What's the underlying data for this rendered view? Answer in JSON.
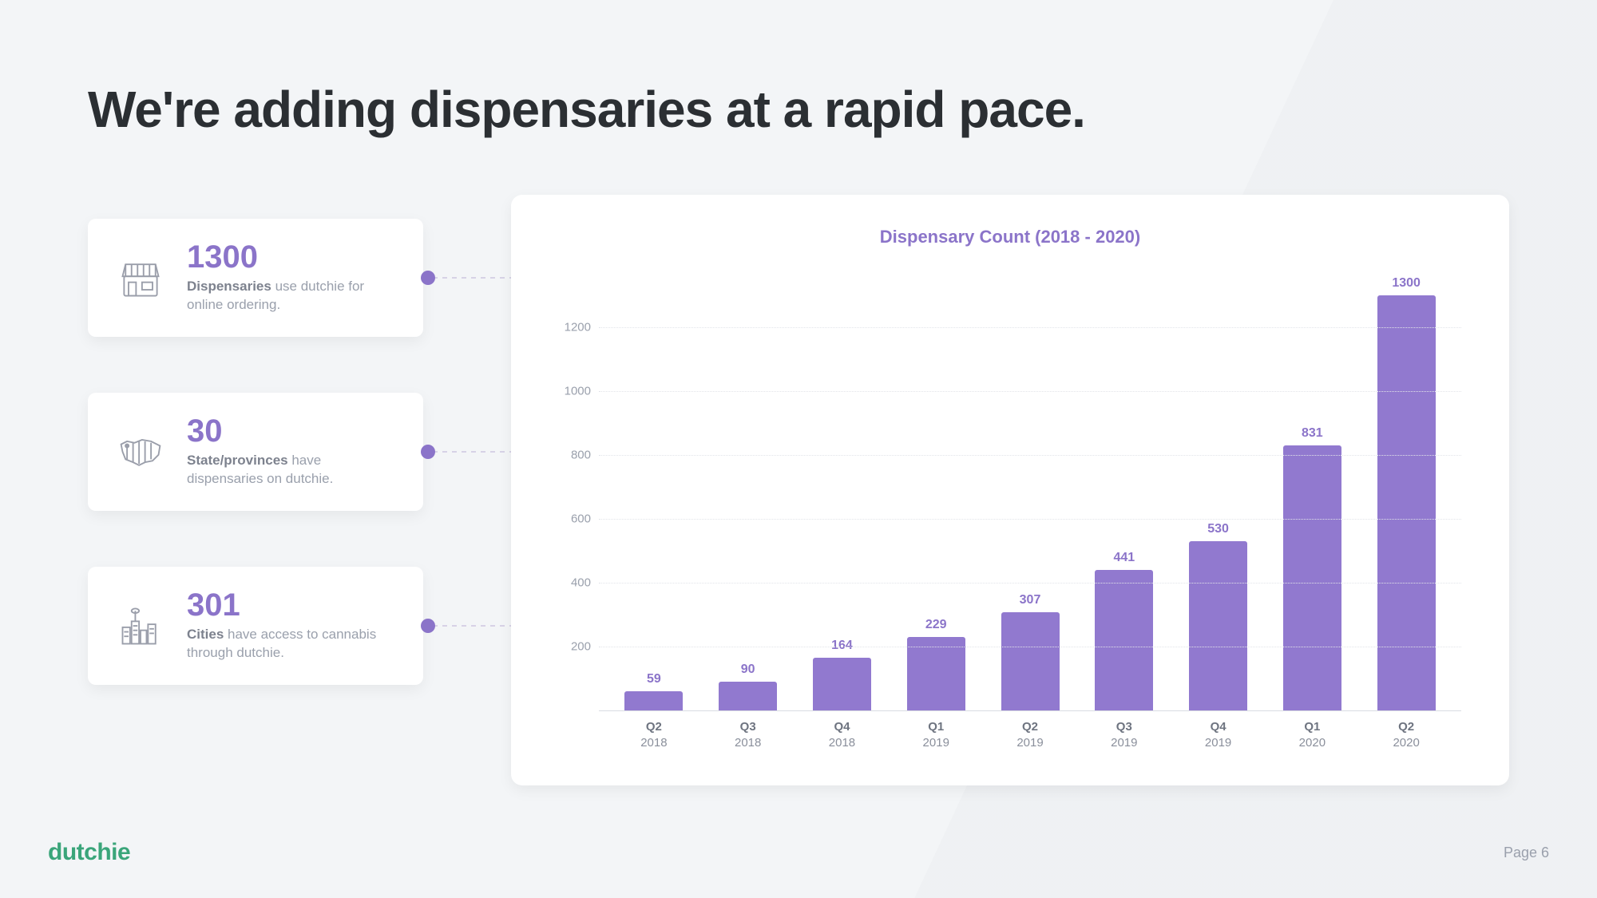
{
  "title": "We're adding dispensaries at a rapid pace.",
  "cards": [
    {
      "value": "1300",
      "label_bold": "Dispensaries",
      "label_rest": " use dutchie for online ordering."
    },
    {
      "value": "30",
      "label_bold": "State/provinces",
      "label_rest": " have dispensaries on dutchie."
    },
    {
      "value": "301",
      "label_bold": "Cities",
      "label_rest": " have access to cannabis through dutchie."
    }
  ],
  "chart": {
    "type": "bar",
    "title": "Dispensary Count (2018 - 2020)",
    "ylim": [
      0,
      1400
    ],
    "yticks": [
      200,
      400,
      600,
      800,
      1000,
      1200
    ],
    "bar_color": "#9179cf",
    "value_color": "#8b74c9",
    "grid_color": "#e2e4e9",
    "background_color": "#ffffff",
    "categories": [
      {
        "q": "Q2",
        "y": "2018"
      },
      {
        "q": "Q3",
        "y": "2018"
      },
      {
        "q": "Q4",
        "y": "2018"
      },
      {
        "q": "Q1",
        "y": "2019"
      },
      {
        "q": "Q2",
        "y": "2019"
      },
      {
        "q": "Q3",
        "y": "2019"
      },
      {
        "q": "Q4",
        "y": "2019"
      },
      {
        "q": "Q1",
        "y": "2020"
      },
      {
        "q": "Q2",
        "y": "2020"
      }
    ],
    "values": [
      59,
      90,
      164,
      229,
      307,
      441,
      530,
      831,
      1300
    ]
  },
  "footer": {
    "logo": "dutchie",
    "page": "Page 6"
  },
  "colors": {
    "accent": "#8b74c9",
    "text_dark": "#2b2f33",
    "text_muted": "#9aa0ac",
    "page_bg": "#f3f5f7",
    "logo": "#3aa57a"
  }
}
